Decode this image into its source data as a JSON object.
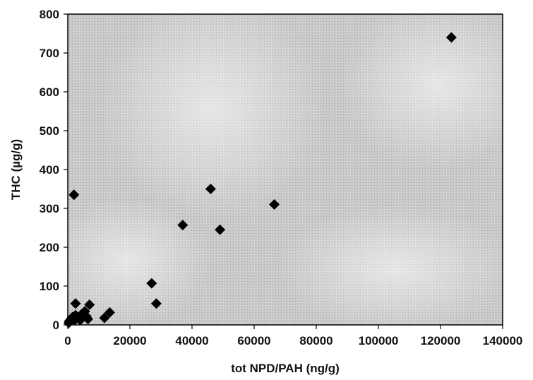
{
  "chart_data": {
    "type": "scatter",
    "xlabel": "tot NPD/PAH (ng/g)",
    "ylabel": "THC (µg/g)",
    "xlim": [
      0,
      140000
    ],
    "ylim": [
      0,
      800
    ],
    "x_ticks": [
      0,
      20000,
      40000,
      60000,
      80000,
      100000,
      120000,
      140000
    ],
    "y_ticks": [
      0,
      100,
      200,
      300,
      400,
      500,
      600,
      700,
      800
    ],
    "x_tick_labels": [
      "0",
      "20000",
      "40000",
      "60000",
      "80000",
      "100000",
      "120000",
      "140000"
    ],
    "y_tick_labels": [
      "0",
      "100",
      "200",
      "300",
      "400",
      "500",
      "600",
      "700",
      "800"
    ],
    "grid": false,
    "legend": "none",
    "marker": "diamond",
    "colors": {
      "plot_background": "#c8c8c8",
      "marker": "#000000",
      "axis": "#000000"
    },
    "series": [
      {
        "points": [
          [
            123500,
            740
          ],
          [
            46000,
            350
          ],
          [
            66500,
            310
          ],
          [
            37000,
            257
          ],
          [
            49000,
            245
          ],
          [
            27000,
            107
          ],
          [
            28500,
            55
          ],
          [
            2000,
            335
          ],
          [
            2500,
            55
          ],
          [
            7000,
            52
          ],
          [
            13500,
            32
          ],
          [
            11800,
            18
          ],
          [
            5500,
            35
          ],
          [
            6000,
            22
          ],
          [
            4500,
            28
          ],
          [
            3500,
            18
          ],
          [
            2500,
            25
          ],
          [
            1500,
            20
          ],
          [
            1000,
            15
          ],
          [
            500,
            10
          ],
          [
            300,
            5
          ],
          [
            2200,
            12
          ],
          [
            6500,
            15
          ],
          [
            4000,
            12
          ]
        ]
      }
    ]
  }
}
